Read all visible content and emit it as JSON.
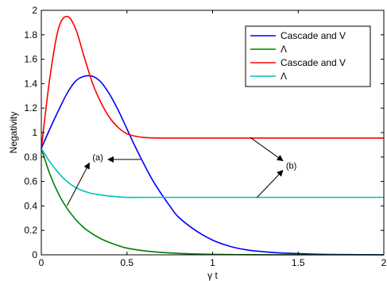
{
  "chart_data": {
    "type": "line",
    "title": "",
    "xlabel": "γ t",
    "ylabel": "Negativity",
    "xlim": [
      0,
      2
    ],
    "ylim": [
      0,
      2
    ],
    "xticks": [
      0,
      0.5,
      1,
      1.5,
      2
    ],
    "xtick_labels": [
      "0",
      "0.5",
      "1",
      "1.5",
      "2"
    ],
    "yticks": [
      0,
      0.2,
      0.4,
      0.6,
      0.8,
      1,
      1.2,
      1.4,
      1.6,
      1.8,
      2
    ],
    "ytick_labels": [
      "0",
      "0.2",
      "0.4",
      "0.6",
      "0.8",
      "1",
      "1.2",
      "1.4",
      "1.6",
      "1.8",
      "2"
    ],
    "grid": false,
    "legend_position": "top-right",
    "series": [
      {
        "name": "Cascade and V",
        "color": "#0000ff",
        "x": [
          0,
          0.05,
          0.1,
          0.15,
          0.2,
          0.25,
          0.3,
          0.35,
          0.4,
          0.45,
          0.5,
          0.55,
          0.6,
          0.65,
          0.7,
          0.75,
          0.8,
          0.9,
          1.0,
          1.1,
          1.2,
          1.3,
          1.4,
          1.5,
          1.6,
          1.7,
          1.8,
          1.9,
          2.0
        ],
        "y": [
          0.87,
          1.03,
          1.18,
          1.32,
          1.42,
          1.46,
          1.46,
          1.41,
          1.31,
          1.18,
          1.03,
          0.88,
          0.74,
          0.61,
          0.5,
          0.4,
          0.31,
          0.2,
          0.12,
          0.07,
          0.04,
          0.025,
          0.015,
          0.01,
          0.005,
          0.003,
          0.002,
          0.001,
          0
        ]
      },
      {
        "name": "Λ",
        "color": "#007f00",
        "x": [
          0,
          0.05,
          0.1,
          0.15,
          0.2,
          0.25,
          0.3,
          0.35,
          0.4,
          0.45,
          0.5,
          0.6,
          0.7,
          0.8,
          0.9,
          1.0,
          1.1,
          1.2,
          1.4,
          1.6,
          1.8,
          2.0
        ],
        "y": [
          0.87,
          0.66,
          0.5,
          0.38,
          0.29,
          0.22,
          0.17,
          0.13,
          0.1,
          0.075,
          0.055,
          0.033,
          0.02,
          0.012,
          0.007,
          0.004,
          0.002,
          0.001,
          0.0005,
          0,
          0,
          0
        ]
      },
      {
        "name": "Cascade and V",
        "color": "#ff0000",
        "x": [
          0,
          0.05,
          0.1,
          0.15,
          0.2,
          0.25,
          0.3,
          0.35,
          0.4,
          0.45,
          0.5,
          0.55,
          0.6,
          0.7,
          0.8,
          0.9,
          1.0,
          1.2,
          1.4,
          1.6,
          1.8,
          2.0
        ],
        "y": [
          0.87,
          1.45,
          1.85,
          1.95,
          1.85,
          1.62,
          1.4,
          1.24,
          1.12,
          1.04,
          0.99,
          0.97,
          0.96,
          0.955,
          0.955,
          0.955,
          0.955,
          0.955,
          0.955,
          0.955,
          0.955,
          0.955
        ]
      },
      {
        "name": "Λ",
        "color": "#00bfbf",
        "x": [
          0,
          0.05,
          0.1,
          0.15,
          0.2,
          0.25,
          0.3,
          0.35,
          0.4,
          0.5,
          0.6,
          0.7,
          0.8,
          1.0,
          1.2,
          1.4,
          1.6,
          1.8,
          2.0
        ],
        "y": [
          0.87,
          0.76,
          0.67,
          0.6,
          0.55,
          0.52,
          0.5,
          0.49,
          0.48,
          0.47,
          0.47,
          0.47,
          0.47,
          0.47,
          0.47,
          0.47,
          0.47,
          0.47,
          0.47
        ]
      }
    ],
    "annotations": [
      {
        "text": "(a)",
        "label_at": [
          0.33,
          0.8
        ],
        "arrows": [
          {
            "from": [
              0.58,
              0.78
            ],
            "to": [
              0.39,
              0.78
            ]
          },
          {
            "from": [
              0.15,
              0.4
            ],
            "to": [
              0.28,
              0.75
            ]
          }
        ]
      },
      {
        "text": "(b)",
        "label_at": [
          1.46,
          0.73
        ],
        "arrows": [
          {
            "from": [
              1.22,
              0.96
            ],
            "to": [
              1.41,
              0.77
            ]
          },
          {
            "from": [
              1.26,
              0.47
            ],
            "to": [
              1.41,
              0.69
            ]
          }
        ]
      }
    ]
  }
}
